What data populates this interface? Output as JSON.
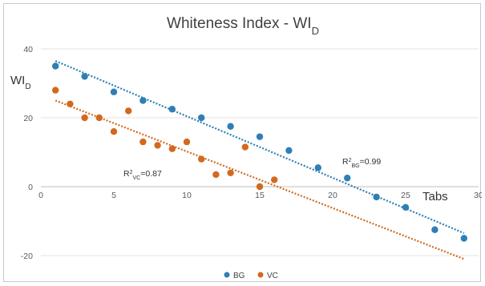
{
  "chart_data": {
    "type": "scatter",
    "title": "Whiteness Index - WI",
    "title_subscript": "D",
    "xlabel": "Tabs",
    "ylabel": "WI",
    "ylabel_subscript": "D",
    "xlim": [
      0,
      30
    ],
    "ylim": [
      -20,
      40
    ],
    "x_ticks": [
      0,
      5,
      10,
      15,
      20,
      25,
      30
    ],
    "y_ticks": [
      -20,
      0,
      20,
      40
    ],
    "grid": "horizontal",
    "legend_position": "bottom",
    "series": [
      {
        "name": "BG",
        "color": "#2e7fb5",
        "x": [
          1,
          3,
          5,
          7,
          9,
          11,
          13,
          15,
          17,
          19,
          21,
          23,
          25,
          27,
          29
        ],
        "y": [
          35,
          32,
          27.5,
          25,
          22.5,
          20,
          17.5,
          14.5,
          10.5,
          5.5,
          2.5,
          -3,
          -6,
          -12.5,
          -15
        ],
        "trendline": {
          "x": [
            1,
            29
          ],
          "y": [
            36.5,
            -13.5
          ]
        },
        "annotation": {
          "base": "R",
          "sup": "2",
          "sub": "BG",
          "value": "=0.99"
        }
      },
      {
        "name": "VC",
        "color": "#d2691e",
        "x": [
          1,
          2,
          3,
          4,
          5,
          6,
          7,
          8,
          9,
          10,
          11,
          12,
          13,
          14,
          15,
          16
        ],
        "y": [
          28,
          24,
          20,
          20,
          16,
          22,
          13,
          12,
          11,
          13,
          8,
          3.5,
          4,
          11.5,
          0,
          2
        ],
        "trendline": {
          "x": [
            1,
            29
          ],
          "y": [
            25,
            -21
          ]
        },
        "annotation": {
          "base": "R",
          "sup": "2",
          "sub": "VC",
          "value": "=0.87"
        }
      }
    ]
  }
}
